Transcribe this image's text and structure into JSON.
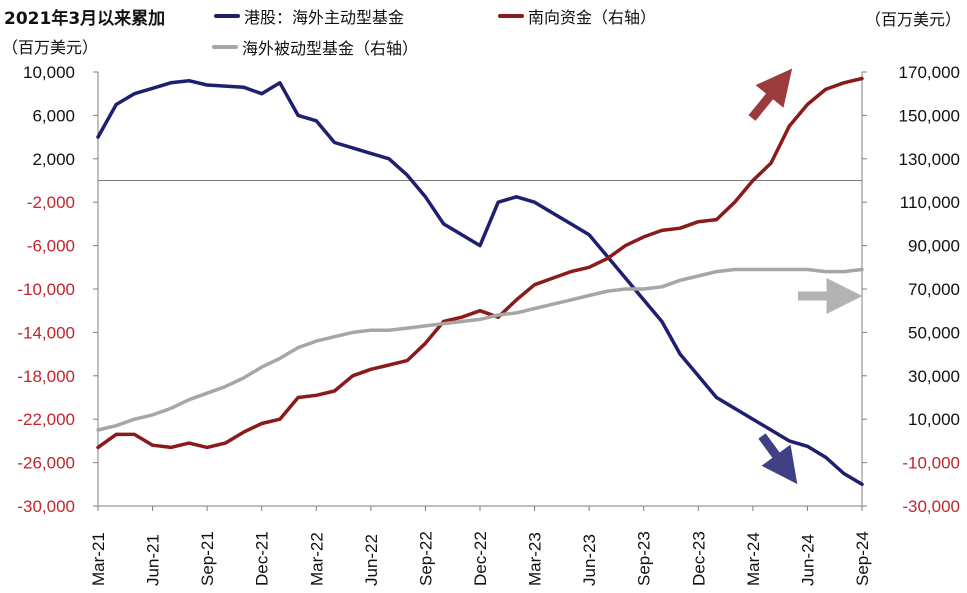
{
  "header": {
    "title": "2021年3月以来累加",
    "left_unit": "（百万美元）",
    "right_unit": "（百万美元）"
  },
  "legend": [
    {
      "label": "港股：海外主动型基金",
      "color": "#1F1F6F"
    },
    {
      "label": "南向资金（右轴）",
      "color": "#8B1A1A"
    },
    {
      "label": "海外被动型基金（右轴）",
      "color": "#A6A6A6"
    }
  ],
  "chart_data": {
    "type": "line",
    "x": [
      "Mar-21",
      "Apr-21",
      "May-21",
      "Jun-21",
      "Jul-21",
      "Aug-21",
      "Sep-21",
      "Oct-21",
      "Nov-21",
      "Dec-21",
      "Jan-22",
      "Feb-22",
      "Mar-22",
      "Apr-22",
      "May-22",
      "Jun-22",
      "Jul-22",
      "Aug-22",
      "Sep-22",
      "Oct-22",
      "Nov-22",
      "Dec-22",
      "Jan-23",
      "Feb-23",
      "Mar-23",
      "Apr-23",
      "May-23",
      "Jun-23",
      "Jul-23",
      "Aug-23",
      "Sep-23",
      "Oct-23",
      "Nov-23",
      "Dec-23",
      "Jan-24",
      "Feb-24",
      "Mar-24",
      "Apr-24",
      "May-24",
      "Jun-24",
      "Jul-24",
      "Aug-24",
      "Sep-24"
    ],
    "x_tick_labels": [
      "Mar-21",
      "Jun-21",
      "Sep-21",
      "Dec-21",
      "Mar-22",
      "Jun-22",
      "Sep-22",
      "Dec-22",
      "Mar-23",
      "Jun-23",
      "Sep-23",
      "Dec-23",
      "Mar-24",
      "Jun-24",
      "Sep-24"
    ],
    "left_axis": {
      "ylim": [
        -30000,
        10000
      ],
      "ticks": [
        "10,000",
        "6,000",
        "2,000",
        "-2,000",
        "-6,000",
        "-10,000",
        "-14,000",
        "-18,000",
        "-22,000",
        "-26,000",
        "-30,000"
      ],
      "tick_values": [
        10000,
        6000,
        2000,
        -2000,
        -6000,
        -10000,
        -14000,
        -18000,
        -22000,
        -26000,
        -30000
      ],
      "negative_color": "#C0262D",
      "positive_color": "#111111"
    },
    "right_axis": {
      "ylim": [
        -30000,
        170000
      ],
      "ticks": [
        "170,000",
        "150,000",
        "130,000",
        "110,000",
        "90,000",
        "70,000",
        "50,000",
        "30,000",
        "10,000",
        "-10,000",
        "-30,000"
      ],
      "tick_values": [
        170000,
        150000,
        130000,
        110000,
        90000,
        70000,
        50000,
        30000,
        10000,
        -10000,
        -30000
      ],
      "negative_color": "#C0262D",
      "positive_color": "#111111"
    },
    "series": [
      {
        "name": "港股：海外主动型基金",
        "axis": "left",
        "color": "#1F1F6F",
        "values": [
          4000,
          7000,
          8000,
          8500,
          9000,
          9200,
          8800,
          8700,
          8600,
          8000,
          9000,
          6000,
          5500,
          3500,
          3000,
          2500,
          2000,
          500,
          -1500,
          -4000,
          -5000,
          -6000,
          -2000,
          -1500,
          -2000,
          -3000,
          -4000,
          -5000,
          -7000,
          -9000,
          -11000,
          -13000,
          -16000,
          -18000,
          -20000,
          -21000,
          -22000,
          -23000,
          -24000,
          -24500,
          -25500,
          -27000,
          -28000
        ]
      },
      {
        "name": "南向资金（右轴）",
        "axis": "right",
        "color": "#8B1A1A",
        "values": [
          -3000,
          3000,
          3000,
          -2000,
          -3000,
          -1000,
          -3000,
          -1000,
          4000,
          8000,
          10000,
          20000,
          21000,
          23000,
          30000,
          33000,
          35000,
          37000,
          45000,
          55000,
          57000,
          60000,
          57000,
          65000,
          72000,
          75000,
          78000,
          80000,
          84000,
          90000,
          94000,
          97000,
          98000,
          101000,
          102000,
          110000,
          120000,
          128000,
          145000,
          155000,
          162000,
          165000,
          167000
        ]
      },
      {
        "name": "海外被动型基金（右轴）",
        "axis": "right",
        "color": "#A6A6A6",
        "values": [
          5000,
          7000,
          10000,
          12000,
          15000,
          19000,
          22000,
          25000,
          29000,
          34000,
          38000,
          43000,
          46000,
          48000,
          50000,
          51000,
          51000,
          52000,
          53000,
          54000,
          55000,
          56000,
          58000,
          59000,
          61000,
          63000,
          65000,
          67000,
          69000,
          70000,
          70000,
          71000,
          74000,
          76000,
          78000,
          79000,
          79000,
          79000,
          79000,
          79000,
          78000,
          78000,
          79000
        ]
      }
    ],
    "annotations": [
      {
        "shape": "arrow",
        "direction": "up-right",
        "color": "#8B1A1A"
      },
      {
        "shape": "arrow",
        "direction": "right",
        "color": "#A6A6A6"
      },
      {
        "shape": "arrow",
        "direction": "down-right",
        "color": "#1F1F6F"
      }
    ],
    "zero_line": true,
    "grid": false
  }
}
